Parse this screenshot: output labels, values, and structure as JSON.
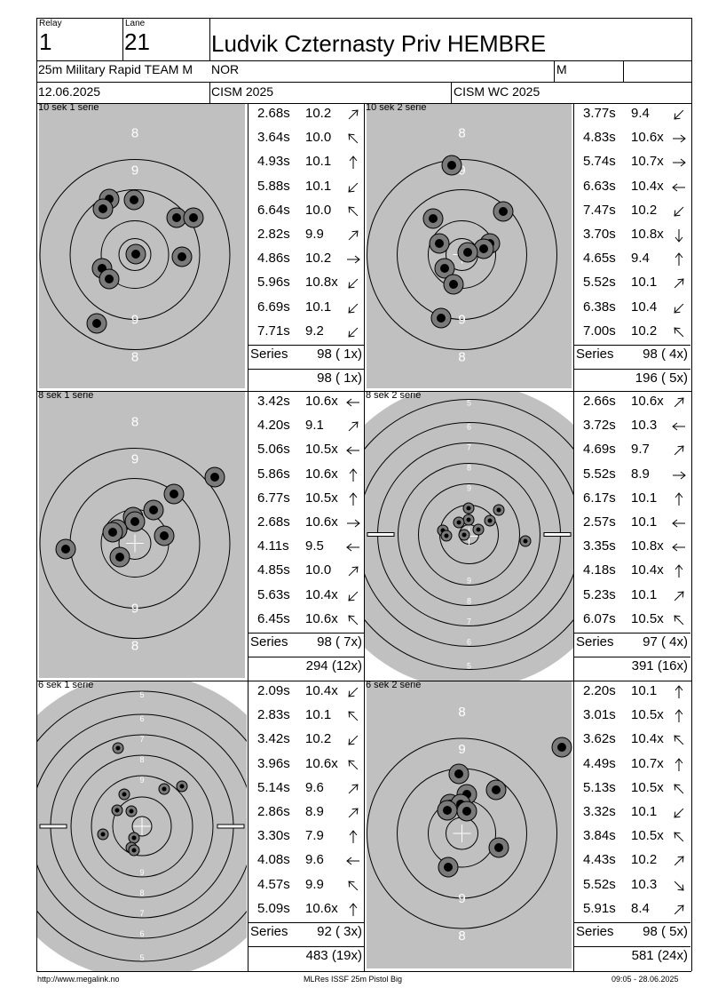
{
  "header": {
    "relay_label": "Relay",
    "relay": "1",
    "lane_label": "Lane",
    "lane": "21",
    "shooter": "Ludvik Czternasty Priv HEMBRE",
    "event": "25m Military Rapid TEAM M",
    "nation": "NOR",
    "gender": "M",
    "date": "12.06.2025",
    "competition": "CISM 2025",
    "match": "CISM WC 2025"
  },
  "footer": {
    "url": "http://www.megalink.no",
    "software": "MLRes ISSF 25m Pistol Big",
    "printed": "09:05 - 28.06.2025"
  },
  "series_label": "Series",
  "panels": [
    {
      "title": "10 sek 1 serie",
      "target": "large",
      "shots": [
        {
          "t": "2.68s",
          "s": "10.2",
          "dir": "ne"
        },
        {
          "t": "3.64s",
          "s": "10.0",
          "dir": "nw"
        },
        {
          "t": "4.93s",
          "s": "10.1",
          "dir": "n"
        },
        {
          "t": "5.88s",
          "s": "10.1",
          "dir": "sw"
        },
        {
          "t": "6.64s",
          "s": "10.0",
          "dir": "nw"
        },
        {
          "t": "2.82s",
          "s": "9.9",
          "dir": "ne"
        },
        {
          "t": "4.86s",
          "s": "10.2",
          "dir": "e"
        },
        {
          "t": "5.96s",
          "s": "10.8x",
          "dir": "sw"
        },
        {
          "t": "6.69s",
          "s": "10.1",
          "dir": "sw"
        },
        {
          "t": "7.71s",
          "s": "9.2",
          "dir": "sw"
        }
      ],
      "series_total": "98 ( 1x)",
      "running_total": "98 ( 1x)"
    },
    {
      "title": "10 sek 2 serie",
      "target": "large",
      "shots": [
        {
          "t": "3.77s",
          "s": "9.4",
          "dir": "sw"
        },
        {
          "t": "4.83s",
          "s": "10.6x",
          "dir": "e"
        },
        {
          "t": "5.74s",
          "s": "10.7x",
          "dir": "e"
        },
        {
          "t": "6.63s",
          "s": "10.4x",
          "dir": "w"
        },
        {
          "t": "7.47s",
          "s": "10.2",
          "dir": "sw"
        },
        {
          "t": "3.70s",
          "s": "10.8x",
          "dir": "s"
        },
        {
          "t": "4.65s",
          "s": "9.4",
          "dir": "n"
        },
        {
          "t": "5.52s",
          "s": "10.1",
          "dir": "ne"
        },
        {
          "t": "6.38s",
          "s": "10.4",
          "dir": "sw"
        },
        {
          "t": "7.00s",
          "s": "10.2",
          "dir": "nw"
        }
      ],
      "series_total": "98 ( 4x)",
      "running_total": "196 ( 5x)"
    },
    {
      "title": "8 sek 1 serie",
      "target": "large",
      "shots": [
        {
          "t": "3.42s",
          "s": "10.6x",
          "dir": "w"
        },
        {
          "t": "4.20s",
          "s": "9.1",
          "dir": "ne"
        },
        {
          "t": "5.06s",
          "s": "10.5x",
          "dir": "w"
        },
        {
          "t": "5.86s",
          "s": "10.6x",
          "dir": "n"
        },
        {
          "t": "6.77s",
          "s": "10.5x",
          "dir": "n"
        },
        {
          "t": "2.68s",
          "s": "10.6x",
          "dir": "e"
        },
        {
          "t": "4.11s",
          "s": "9.5",
          "dir": "w"
        },
        {
          "t": "4.85s",
          "s": "10.0",
          "dir": "ne"
        },
        {
          "t": "5.63s",
          "s": "10.4x",
          "dir": "sw"
        },
        {
          "t": "6.45s",
          "s": "10.6x",
          "dir": "nw"
        }
      ],
      "series_total": "98 ( 7x)",
      "running_total": "294 (12x)"
    },
    {
      "title": "8 sek 2 serie",
      "target": "small",
      "shots": [
        {
          "t": "2.66s",
          "s": "10.6x",
          "dir": "ne"
        },
        {
          "t": "3.72s",
          "s": "10.3",
          "dir": "w"
        },
        {
          "t": "4.69s",
          "s": "9.7",
          "dir": "ne"
        },
        {
          "t": "5.52s",
          "s": "8.9",
          "dir": "e"
        },
        {
          "t": "6.17s",
          "s": "10.1",
          "dir": "n"
        },
        {
          "t": "2.57s",
          "s": "10.1",
          "dir": "w"
        },
        {
          "t": "3.35s",
          "s": "10.8x",
          "dir": "w"
        },
        {
          "t": "4.18s",
          "s": "10.4x",
          "dir": "n"
        },
        {
          "t": "5.23s",
          "s": "10.1",
          "dir": "ne"
        },
        {
          "t": "6.07s",
          "s": "10.5x",
          "dir": "nw"
        }
      ],
      "series_total": "97 ( 4x)",
      "running_total": "391 (16x)"
    },
    {
      "title": "6 sek 1 serie",
      "target": "small",
      "shots": [
        {
          "t": "2.09s",
          "s": "10.4x",
          "dir": "sw"
        },
        {
          "t": "2.83s",
          "s": "10.1",
          "dir": "nw"
        },
        {
          "t": "3.42s",
          "s": "10.2",
          "dir": "sw"
        },
        {
          "t": "3.96s",
          "s": "10.6x",
          "dir": "nw"
        },
        {
          "t": "5.14s",
          "s": "9.6",
          "dir": "ne"
        },
        {
          "t": "2.86s",
          "s": "8.9",
          "dir": "ne"
        },
        {
          "t": "3.30s",
          "s": "7.9",
          "dir": "n"
        },
        {
          "t": "4.08s",
          "s": "9.6",
          "dir": "w"
        },
        {
          "t": "4.57s",
          "s": "9.9",
          "dir": "nw"
        },
        {
          "t": "5.09s",
          "s": "10.6x",
          "dir": "n"
        }
      ],
      "series_total": "92 ( 3x)",
      "running_total": "483 (19x)"
    },
    {
      "title": "6 sek 2 serie",
      "target": "large",
      "shots": [
        {
          "t": "2.20s",
          "s": "10.1",
          "dir": "n"
        },
        {
          "t": "3.01s",
          "s": "10.5x",
          "dir": "n"
        },
        {
          "t": "3.62s",
          "s": "10.4x",
          "dir": "nw"
        },
        {
          "t": "4.49s",
          "s": "10.7x",
          "dir": "n"
        },
        {
          "t": "5.13s",
          "s": "10.5x",
          "dir": "nw"
        },
        {
          "t": "3.32s",
          "s": "10.1",
          "dir": "sw"
        },
        {
          "t": "3.84s",
          "s": "10.5x",
          "dir": "nw"
        },
        {
          "t": "4.43s",
          "s": "10.2",
          "dir": "ne"
        },
        {
          "t": "5.52s",
          "s": "10.3",
          "dir": "se"
        },
        {
          "t": "5.91s",
          "s": "8.4",
          "dir": "ne"
        }
      ],
      "series_total": "98 ( 5x)",
      "running_total": "581 (24x)"
    }
  ],
  "ring_labels_large": [
    "8",
    "9",
    "9",
    "8"
  ],
  "ring_labels_small": [
    "5",
    "6",
    "7",
    "8",
    "9",
    "9",
    "8",
    "7",
    "6",
    "5"
  ],
  "colors": {
    "target_grey": "#c0c0c0",
    "line": "#000000",
    "background": "#ffffff"
  }
}
